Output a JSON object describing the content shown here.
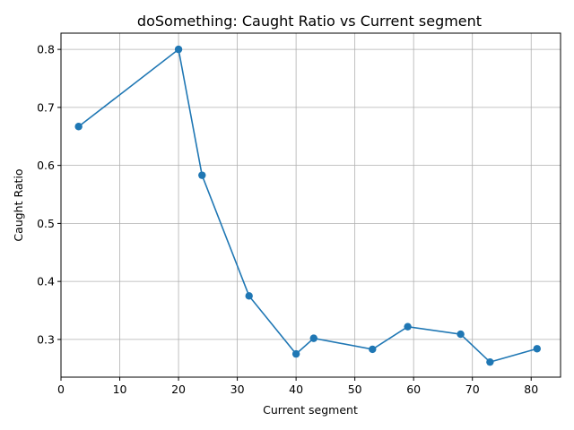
{
  "chart_data": {
    "type": "line",
    "title": "doSomething: Caught Ratio vs Current segment",
    "xlabel": "Current segment",
    "ylabel": "Caught Ratio",
    "xlim": [
      0,
      85
    ],
    "ylim": [
      0.235,
      0.828
    ],
    "xticks": [
      0,
      10,
      20,
      30,
      40,
      50,
      60,
      70,
      80
    ],
    "yticks": [
      0.3,
      0.4,
      0.5,
      0.6,
      0.7,
      0.8
    ],
    "xtick_labels": [
      "0",
      "10",
      "20",
      "30",
      "40",
      "50",
      "60",
      "70",
      "80"
    ],
    "ytick_labels": [
      "0.3",
      "0.4",
      "0.5",
      "0.6",
      "0.7",
      "0.8"
    ],
    "grid": true,
    "series": [
      {
        "color": "#1f77b4",
        "marker": "circle",
        "x": [
          3,
          20,
          24,
          32,
          40,
          43,
          53,
          59,
          68,
          73,
          81
        ],
        "y": [
          0.667,
          0.8,
          0.583,
          0.375,
          0.275,
          0.302,
          0.283,
          0.322,
          0.309,
          0.261,
          0.284
        ]
      }
    ]
  }
}
